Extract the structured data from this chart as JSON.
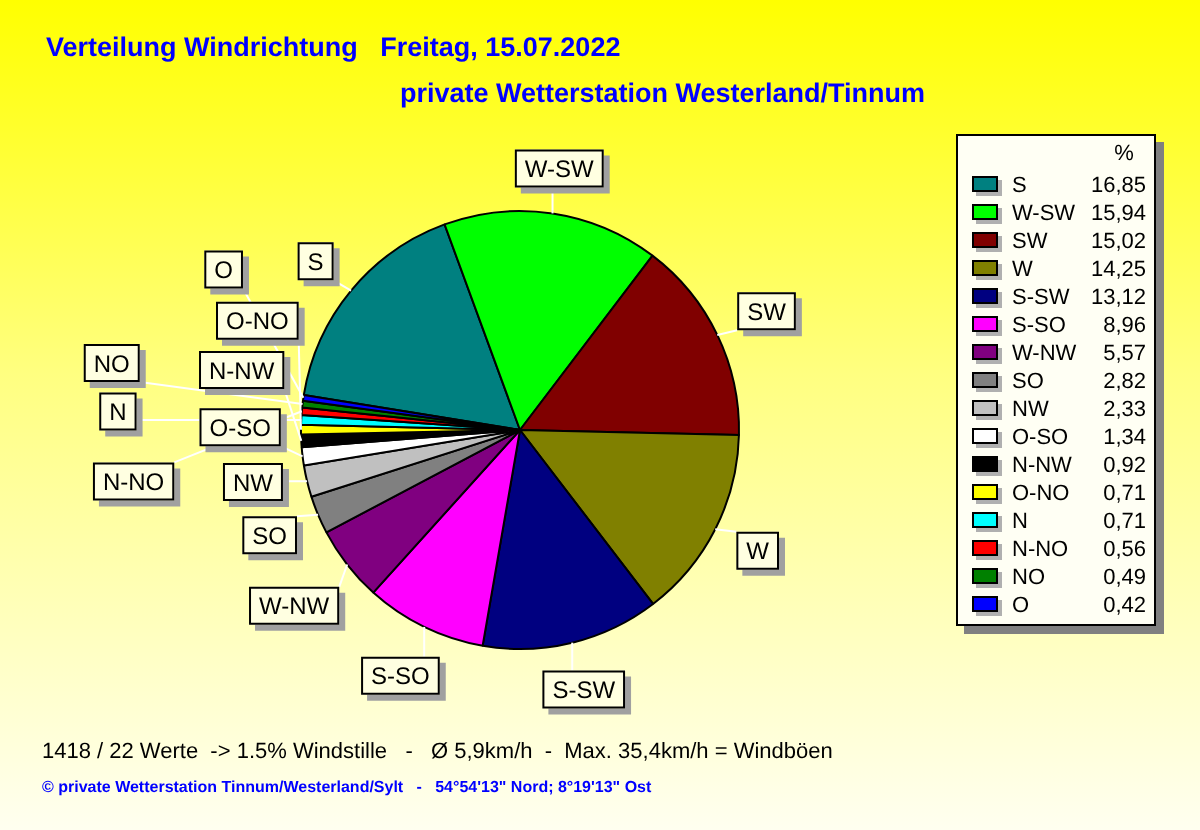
{
  "chart_data": {
    "type": "pie",
    "title": "Verteilung Windrichtung   Freitag, 15.07.2022",
    "subtitle": "private Wetterstation Westerland/Tinnum",
    "categories": [
      "S",
      "W-SW",
      "SW",
      "W",
      "S-SW",
      "S-SO",
      "W-NW",
      "SO",
      "NW",
      "O-SO",
      "N-NW",
      "O-NO",
      "N",
      "N-NO",
      "NO",
      "O"
    ],
    "values": [
      16.85,
      15.94,
      15.02,
      14.25,
      13.12,
      8.96,
      5.57,
      2.82,
      2.33,
      1.34,
      0.92,
      0.71,
      0.71,
      0.56,
      0.49,
      0.42
    ],
    "value_labels": [
      "16,85",
      "15,94",
      "15,02",
      "14,25",
      "13,12",
      "8,96",
      "5,57",
      "2,82",
      "2,33",
      "1,34",
      "0,92",
      "0,71",
      "0,71",
      "0,56",
      "0,49",
      "0,42"
    ],
    "colors": [
      "#008080",
      "#00ff00",
      "#800000",
      "#808000",
      "#000080",
      "#ff00ff",
      "#800080",
      "#808080",
      "#c0c0c0",
      "#ffffff",
      "#000000",
      "#ffff00",
      "#00ffff",
      "#ff0000",
      "#008000",
      "#0000ff"
    ],
    "legend": "right",
    "legend_title": "%",
    "annotations": [
      "1418 / 22 Werte  -> 1.5% Windstille   -   Ø 5,9km/h  -  Max. 35,4km/h = Windböen",
      "© private Wetterstation Tinnum/Westerland/Sylt   -   54°54'13\" Nord; 8°19'13\" Ost"
    ]
  }
}
